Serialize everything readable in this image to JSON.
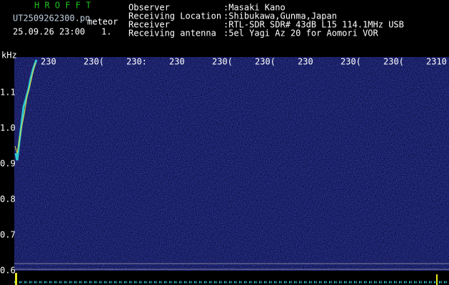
{
  "header": {
    "app_title": "H R O F F T",
    "file": "UT2509262300.pn",
    "mode": "meteor",
    "datetime": "25.09.26 23:00",
    "count": "1."
  },
  "info": {
    "rows": [
      [
        "Observer",
        ":Masaki Kano"
      ],
      [
        "Receiving Location",
        ":Shibukawa,Gunma,Japan"
      ],
      [
        "Receiver",
        ":RTL-SDR SDR# 43dB L15 114.1MHz USB"
      ],
      [
        "Receiving antenna",
        ":5el Yagi Az 20 for Aomori VOR"
      ]
    ]
  },
  "axis": {
    "unit": "kHz",
    "y_labels": [
      "1.1",
      "1.0",
      "0.9",
      "0.8",
      "0.7",
      "0.6"
    ],
    "x_labels": [
      "230",
      "230(",
      "230:",
      "230",
      "230(",
      "230(",
      "230",
      "230(",
      "230(",
      "2310"
    ]
  }
}
